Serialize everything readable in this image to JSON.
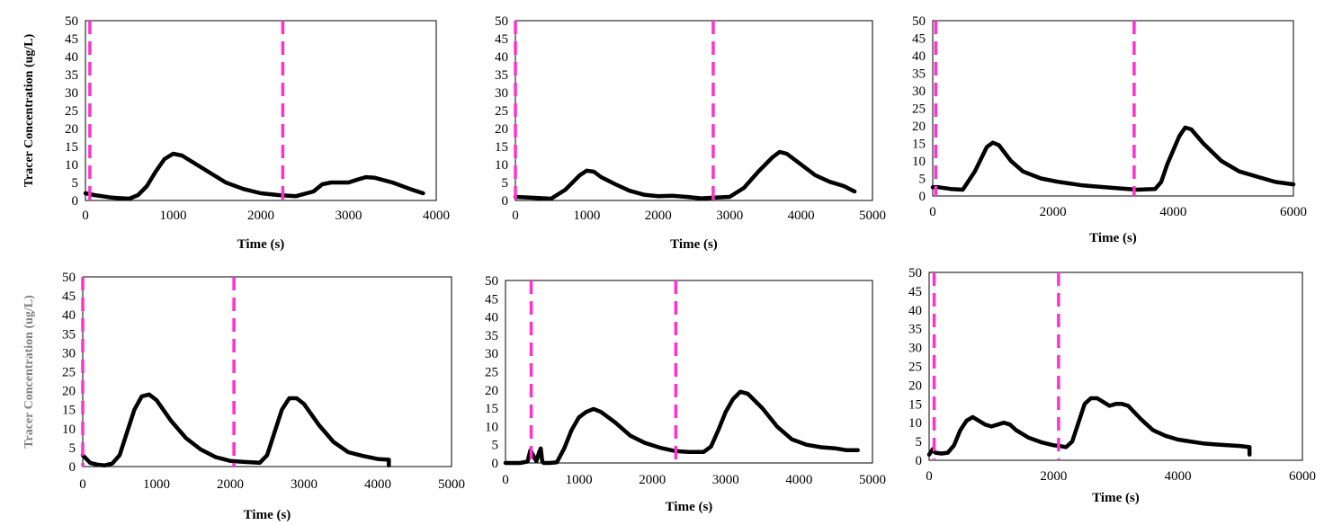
{
  "chart_data": [
    {
      "type": "line",
      "xlabel": "Time (s)",
      "ylabel": "Tracer Concentration (ug/L)",
      "xlim": [
        0,
        4000
      ],
      "xticks": [
        0,
        1000,
        2000,
        3000,
        4000
      ],
      "ylim": [
        0,
        50
      ],
      "yticks": [
        0,
        5,
        10,
        15,
        20,
        25,
        30,
        35,
        40,
        45,
        50
      ],
      "grid": false,
      "vlines": [
        50,
        2250
      ],
      "x": [
        0,
        100,
        300,
        500,
        600,
        700,
        800,
        900,
        1000,
        1100,
        1200,
        1400,
        1600,
        1800,
        2000,
        2200,
        2400,
        2600,
        2700,
        2800,
        3000,
        3100,
        3200,
        3300,
        3500,
        3700,
        3850
      ],
      "values": [
        2,
        1.5,
        0.8,
        0.5,
        1.5,
        4,
        8,
        11.5,
        13,
        12.5,
        11,
        8,
        5,
        3.2,
        2,
        1.5,
        1.2,
        2.5,
        4.5,
        5,
        5,
        5.8,
        6.5,
        6.3,
        5,
        3.2,
        2
      ]
    },
    {
      "type": "line",
      "xlabel": "Time (s)",
      "ylabel": "",
      "xlim": [
        0,
        5000
      ],
      "xticks": [
        0,
        1000,
        2000,
        3000,
        4000,
        5000
      ],
      "ylim": [
        0,
        50
      ],
      "yticks": [
        0,
        5,
        10,
        15,
        20,
        25,
        30,
        35,
        40,
        45,
        50
      ],
      "grid": false,
      "vlines": [
        0,
        2770
      ],
      "x": [
        0,
        200,
        500,
        700,
        900,
        1000,
        1100,
        1200,
        1400,
        1600,
        1800,
        2000,
        2200,
        2400,
        2600,
        2800,
        3000,
        3200,
        3400,
        3600,
        3700,
        3800,
        4000,
        4200,
        4400,
        4600,
        4750
      ],
      "values": [
        1,
        0.8,
        0.5,
        3,
        7,
        8.3,
        8,
        6.5,
        4.5,
        2.7,
        1.6,
        1.2,
        1.3,
        1,
        0.6,
        0.8,
        1,
        3.5,
        8,
        12,
        13.5,
        13,
        10,
        7,
        5.2,
        4,
        2.5
      ]
    },
    {
      "type": "line",
      "xlabel": "Time (s)",
      "ylabel": "",
      "xlim": [
        0,
        6000
      ],
      "xticks": [
        0,
        2000,
        4000,
        6000
      ],
      "ylim": [
        0,
        50
      ],
      "yticks": [
        0,
        5,
        10,
        15,
        20,
        25,
        30,
        35,
        40,
        45,
        50
      ],
      "grid": false,
      "vlines": [
        50,
        3350
      ],
      "x": [
        0,
        100,
        300,
        500,
        700,
        900,
        1000,
        1100,
        1300,
        1500,
        1800,
        2100,
        2500,
        3000,
        3400,
        3700,
        3800,
        3900,
        4100,
        4200,
        4300,
        4500,
        4800,
        5100,
        5400,
        5700,
        6000
      ],
      "values": [
        2.5,
        2.5,
        2,
        1.8,
        7,
        14,
        15.2,
        14.5,
        10,
        7,
        5,
        4,
        3,
        2.3,
        1.8,
        2,
        4,
        9,
        17,
        19.5,
        19,
        15,
        10,
        7,
        5.5,
        4,
        3.3
      ]
    },
    {
      "type": "line",
      "xlabel": "Time (s)",
      "ylabel": "Tracer Concentration (ug/L)",
      "xlim": [
        0,
        5000
      ],
      "xticks": [
        0,
        1000,
        2000,
        3000,
        4000,
        5000
      ],
      "ylim": [
        0,
        50
      ],
      "yticks": [
        0,
        5,
        10,
        15,
        20,
        25,
        30,
        35,
        40,
        45,
        50
      ],
      "grid": false,
      "vlines": [
        0,
        2050
      ],
      "x": [
        0,
        100,
        200,
        300,
        400,
        500,
        600,
        700,
        800,
        900,
        1000,
        1200,
        1400,
        1600,
        1800,
        2000,
        2200,
        2400,
        2500,
        2600,
        2700,
        2800,
        2900,
        3000,
        3200,
        3400,
        3600,
        3800,
        4000,
        4150,
        4150
      ],
      "values": [
        3,
        1,
        0.5,
        0.3,
        0.8,
        3,
        9,
        15,
        18.5,
        19,
        17.5,
        12,
        7.5,
        4.5,
        2.5,
        1.5,
        1.2,
        1,
        3,
        9,
        15,
        18,
        18,
        16.5,
        11,
        6.5,
        3.8,
        2.8,
        2,
        1.8,
        0.3
      ]
    },
    {
      "type": "line",
      "xlabel": "Time (s)",
      "ylabel": "",
      "xlim": [
        0,
        5000
      ],
      "xticks": [
        0,
        1000,
        2000,
        3000,
        4000,
        5000
      ],
      "ylim": [
        0,
        50
      ],
      "yticks": [
        0,
        5,
        10,
        15,
        20,
        25,
        30,
        35,
        40,
        45,
        50
      ],
      "grid": false,
      "vlines": [
        350,
        2320
      ],
      "x": [
        0,
        200,
        300,
        340,
        380,
        420,
        460,
        480,
        500,
        520,
        600,
        700,
        800,
        900,
        1000,
        1100,
        1200,
        1300,
        1500,
        1700,
        1900,
        2100,
        2300,
        2500,
        2700,
        2800,
        2900,
        3000,
        3100,
        3200,
        3300,
        3500,
        3700,
        3900,
        4100,
        4300,
        4500,
        4650,
        4800
      ],
      "values": [
        0,
        0,
        0.4,
        3.5,
        2,
        0.5,
        3,
        4,
        0.5,
        0,
        0,
        0.2,
        4,
        9,
        12.5,
        14,
        14.8,
        14,
        11,
        7.5,
        5.5,
        4.2,
        3.3,
        3,
        3,
        4.5,
        9,
        14,
        17.5,
        19.5,
        19,
        15,
        10,
        6.5,
        5,
        4.3,
        4,
        3.5,
        3.5
      ]
    },
    {
      "type": "line",
      "xlabel": "Time (s)",
      "ylabel": "",
      "xlim": [
        0,
        6000
      ],
      "xticks": [
        0,
        2000,
        4000,
        6000
      ],
      "ylim": [
        0,
        50
      ],
      "yticks": [
        0,
        5,
        10,
        15,
        20,
        25,
        30,
        35,
        40,
        45,
        50
      ],
      "grid": false,
      "vlines": [
        80,
        2080
      ],
      "x": [
        0,
        60,
        100,
        200,
        300,
        400,
        500,
        600,
        700,
        800,
        900,
        1000,
        1100,
        1200,
        1300,
        1400,
        1600,
        1800,
        2000,
        2100,
        2200,
        2300,
        2400,
        2500,
        2600,
        2700,
        2800,
        2900,
        3000,
        3100,
        3200,
        3400,
        3600,
        3800,
        4000,
        4200,
        4400,
        4600,
        4800,
        5000,
        5150,
        5150
      ],
      "values": [
        1.5,
        3,
        2,
        1.8,
        2,
        4,
        8,
        10.5,
        11.5,
        10.5,
        9.5,
        9,
        9.5,
        10,
        9.5,
        8,
        6,
        4.8,
        4,
        3.8,
        3.5,
        5,
        10,
        15,
        16.5,
        16.5,
        15.5,
        14.5,
        15,
        15,
        14.5,
        11,
        8,
        6.5,
        5.5,
        5,
        4.5,
        4.2,
        4,
        3.8,
        3.5,
        1.5
      ]
    }
  ]
}
